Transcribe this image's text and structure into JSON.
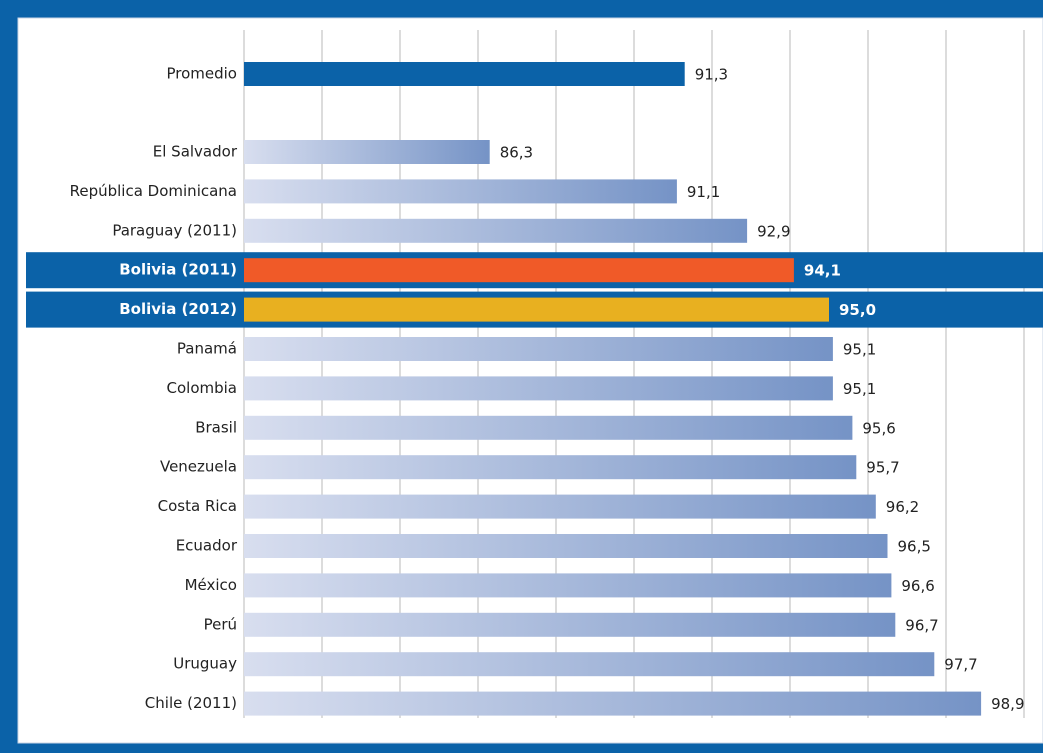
{
  "chart_data": {
    "type": "bar",
    "orientation": "horizontal",
    "categories": [
      "Promedio",
      "El Salvador",
      "República Dominicana",
      "Paraguay (2011)",
      "Bolivia (2011)",
      "Bolivia (2012)",
      "Panamá",
      "Colombia",
      "Brasil",
      "Venezuela",
      "Costa Rica",
      "Ecuador",
      "México",
      "Perú",
      "Uruguay",
      "Chile (2011)"
    ],
    "values": [
      91.3,
      86.3,
      91.1,
      92.9,
      94.1,
      95.0,
      95.1,
      95.1,
      95.6,
      95.7,
      96.2,
      96.5,
      96.6,
      96.7,
      97.7,
      98.9
    ],
    "value_labels": [
      "91,3",
      "86,3",
      "91,1",
      "92,9",
      "94,1",
      "95,0",
      "95,1",
      "95,1",
      "95,6",
      "95,7",
      "96,2",
      "96,5",
      "96,6",
      "96,7",
      "97,7",
      "98,9"
    ],
    "colors": [
      "#0b62a8",
      "#7593c6",
      "#7593c6",
      "#7593c6",
      "#f05a28",
      "#e8b020",
      "#7593c6",
      "#7593c6",
      "#7593c6",
      "#7593c6",
      "#7593c6",
      "#7593c6",
      "#7593c6",
      "#7593c6",
      "#7593c6",
      "#7593c6"
    ],
    "xlim": [
      80,
      100
    ],
    "xticks": [
      80,
      82,
      84,
      86,
      88,
      90,
      92,
      94,
      96,
      98,
      100
    ],
    "grid": true
  }
}
